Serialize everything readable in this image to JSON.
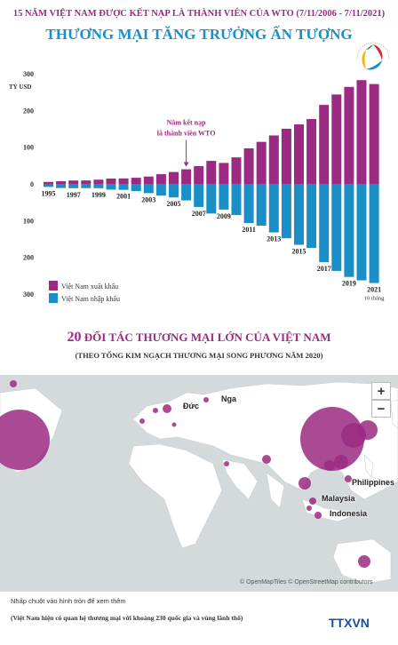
{
  "header": {
    "top_title": "15 NĂM VIỆT NAM ĐƯỢC KẾT NẠP LÀ THÀNH VIÊN CỦA WTO (7/11/2006 - 7/11/2021)",
    "main_title": "THƯƠNG MẠI TĂNG TRƯỞNG ẤN TƯỢNG"
  },
  "chart_data": {
    "type": "bar",
    "title": "",
    "ylabel": "TỶ USD",
    "ylim": [
      -300,
      300
    ],
    "y_ticks": [
      "300",
      "200",
      "100",
      "0",
      "100",
      "200",
      "300"
    ],
    "categories": [
      "1995",
      "1996",
      "1997",
      "1998",
      "1999",
      "2000",
      "2001",
      "2002",
      "2003",
      "2004",
      "2005",
      "2006",
      "2007",
      "2008",
      "2009",
      "2010",
      "2011",
      "2012",
      "2013",
      "2014",
      "2015",
      "2016",
      "2017",
      "2018",
      "2019",
      "2020",
      "2021"
    ],
    "x_labels_shown": [
      "1995",
      "1997",
      "1999",
      "2001",
      "2003",
      "2005",
      "2007",
      "2009",
      "2011",
      "2013",
      "2015",
      "2017",
      "2019",
      "2021"
    ],
    "x_label_note": "10 tháng",
    "series": [
      {
        "name": "Việt Nam xuất khẩu",
        "color": "#9b2a83",
        "values": [
          5.4,
          7.3,
          9.2,
          9.4,
          11.5,
          14.5,
          15,
          16.7,
          20.1,
          26.5,
          32.4,
          39.8,
          48.6,
          62.7,
          57.1,
          72.2,
          96.9,
          114.5,
          132,
          150.2,
          162,
          176.6,
          215.1,
          243.5,
          264.2,
          282.6,
          272
        ]
      },
      {
        "name": "Việt Nam nhập khẩu",
        "color": "#1a8fc7",
        "values": [
          8.2,
          11.1,
          11.6,
          11.5,
          11.7,
          15.6,
          16.2,
          19.7,
          25.2,
          31.9,
          36.8,
          44.9,
          62.8,
          80.7,
          69.9,
          84.8,
          106.7,
          113.8,
          132,
          148,
          165.8,
          174.1,
          213.2,
          236.9,
          253.4,
          262.7,
          270
        ]
      }
    ],
    "annotation": {
      "text_line1": "Năm kết nạp",
      "text_line2": "là thành viên WTO",
      "category": "2006"
    },
    "legend": "bottom-left"
  },
  "section2": {
    "title_num": "20",
    "title_rest": "ĐỐI TÁC THƯƠNG MẠI LỚN CỦA VIỆT NAM",
    "subtitle": "(THEO TỔNG KIM NGẠCH THƯƠNG MẠI SONG PHƯƠNG NĂM 2020)"
  },
  "map": {
    "zoom_in": "+",
    "zoom_out": "−",
    "labels": {
      "nga": "Nga",
      "duc": "Đức",
      "philippines": "Philippines",
      "malaysia": "Malaysia",
      "indonesia": "Indonesia"
    },
    "attribution": "© OpenMapTiles © OpenStreetMap contributors",
    "bubble_color": "#9b2a83"
  },
  "footer": {
    "hint": "Nhấp chuột vào hình tròn để xem thêm",
    "note": "(Việt Nam hiện có quan hệ thương mại với khoảng 230 quốc gia và vùng lãnh thổ)",
    "brand": "TTXVN"
  }
}
